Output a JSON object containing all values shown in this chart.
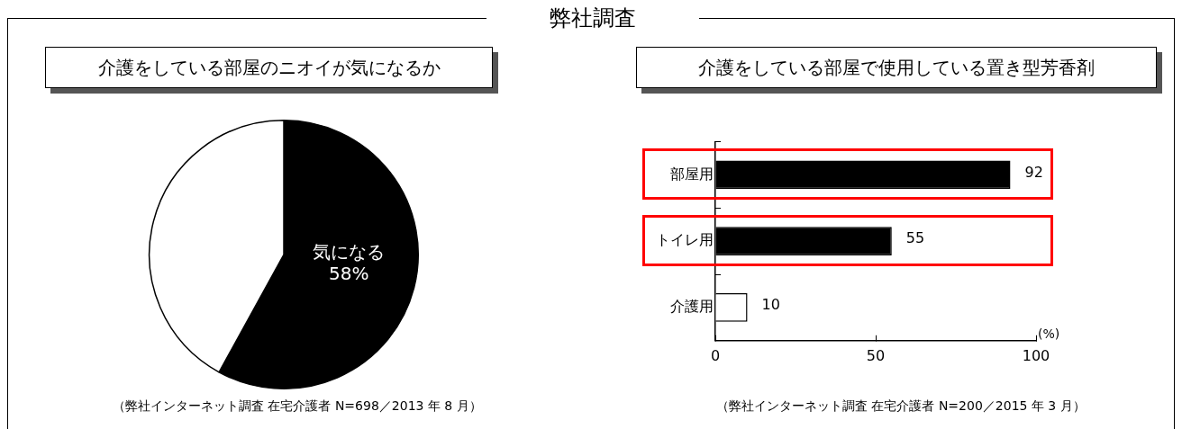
{
  "chart_data": [
    {
      "type": "other",
      "title": "弊社調査"
    },
    {
      "type": "pie",
      "title": "介護をしている部屋のニオイが気になるか",
      "categories": [
        "気になる",
        null
      ],
      "values": [
        58,
        42
      ],
      "colors": [
        "#000000",
        "#ffffff"
      ],
      "value_labels": [
        "58%",
        null
      ],
      "annotations": [
        "（弊社インターネット調査 在宅介護者 N=698／2013 年 8 月）"
      ]
    },
    {
      "type": "bar",
      "orientation": "horizontal",
      "title": "介護をしている部屋で使用している置き型芳香剤",
      "categories": [
        "部屋用",
        "トイレ用",
        "介護用"
      ],
      "values": [
        92,
        55,
        10
      ],
      "colors": [
        "#000000",
        "#000000",
        "#ffffff"
      ],
      "xlim": [
        0,
        100
      ],
      "xticks": [
        0,
        50,
        100
      ],
      "xlabel": "(%)",
      "data_labels": true,
      "annotations": [
        "（弊社インターネット調査 在宅介護者 N=200／2015 年 3 月）"
      ]
    }
  ]
}
